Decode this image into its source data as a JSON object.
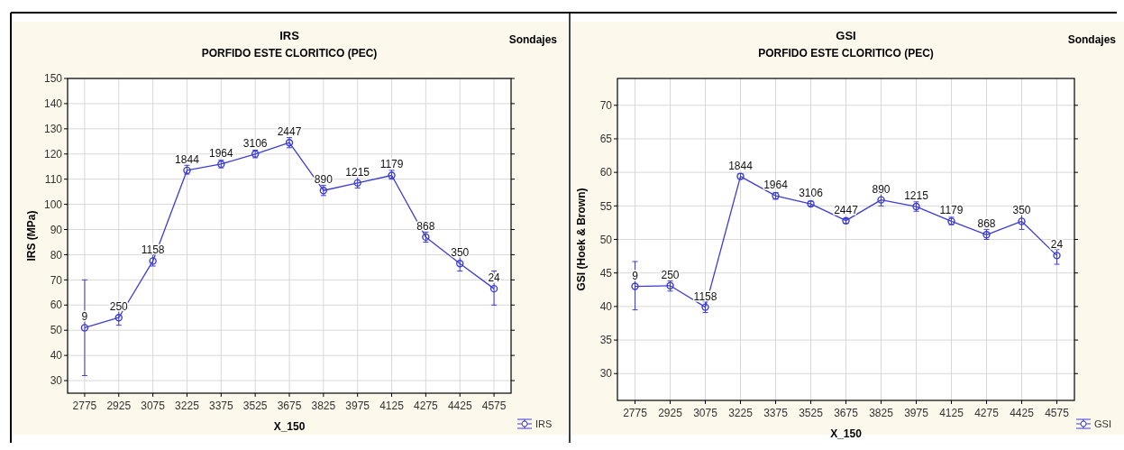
{
  "chart_data": [
    {
      "type": "line",
      "title": "IRS",
      "subtitle": "PORFIDO ESTE CLORITICO (PEC)",
      "legend_title": "Sondajes",
      "xlabel": "X_150",
      "ylabel": "IRS (MPa)",
      "categories": [
        "2775",
        "2925",
        "3075",
        "3225",
        "3375",
        "3525",
        "3675",
        "3825",
        "3975",
        "4125",
        "4275",
        "4425",
        "4575"
      ],
      "series": [
        {
          "name": "IRS",
          "color": "#3c3cd8",
          "values": [
            51,
            55,
            77.5,
            113.5,
            116,
            120,
            124.5,
            105.5,
            108.5,
            111.5,
            87,
            76.5,
            66.5
          ],
          "errors": [
            [
              32,
              70
            ],
            [
              52,
              58
            ],
            [
              75.5,
              80
            ],
            [
              112,
              115.5
            ],
            [
              114.5,
              117.5
            ],
            [
              118.5,
              121.5
            ],
            [
              122.5,
              126.5
            ],
            [
              103.5,
              107.5
            ],
            [
              106.5,
              111
            ],
            [
              110,
              113.5
            ],
            [
              85,
              89
            ],
            [
              73.5,
              80
            ],
            [
              60,
              73.5
            ]
          ]
        }
      ],
      "ylim": [
        25,
        150
      ],
      "yticks": [
        30,
        40,
        50,
        60,
        70,
        80,
        90,
        100,
        110,
        120,
        130,
        140,
        150
      ],
      "grid": true,
      "legend": "bottom right",
      "marker": "circle",
      "annotations": [
        {
          "text": "9",
          "x": "2775",
          "y": 51
        },
        {
          "text": "250",
          "x": "2925",
          "y": 55
        },
        {
          "text": "1158",
          "x": "3075",
          "y": 77.5
        },
        {
          "text": "1844",
          "x": "3225",
          "y": 113.5
        },
        {
          "text": "1964",
          "x": "3375",
          "y": 116
        },
        {
          "text": "3106",
          "x": "3525",
          "y": 120
        },
        {
          "text": "2447",
          "x": "3675",
          "y": 124.5
        },
        {
          "text": "890",
          "x": "3825",
          "y": 105.5
        },
        {
          "text": "1215",
          "x": "3975",
          "y": 108.5
        },
        {
          "text": "1179",
          "x": "4125",
          "y": 111.5
        },
        {
          "text": "868",
          "x": "4275",
          "y": 87
        },
        {
          "text": "350",
          "x": "4425",
          "y": 76.5
        },
        {
          "text": "24",
          "x": "4575",
          "y": 66.5
        }
      ]
    },
    {
      "type": "line",
      "title": "GSI",
      "subtitle": "PORFIDO ESTE CLORITICO (PEC)",
      "legend_title": "Sondajes",
      "xlabel": "X_150",
      "ylabel": "GSI (Hoek & Brown)",
      "categories": [
        "2775",
        "2925",
        "3075",
        "3225",
        "3375",
        "3525",
        "3675",
        "3825",
        "3975",
        "4125",
        "4275",
        "4425",
        "4575"
      ],
      "series": [
        {
          "name": "GSI",
          "color": "#3c3cd8",
          "values": [
            43,
            43.1,
            39.9,
            59.4,
            56.5,
            55.3,
            52.8,
            55.9,
            54.9,
            52.7,
            50.7,
            52.7,
            47.6
          ],
          "errors": [
            [
              39.5,
              46.7
            ],
            [
              42.3,
              43.8
            ],
            [
              39.1,
              40.7
            ],
            [
              59,
              59.8
            ],
            [
              56,
              57
            ],
            [
              55,
              55.7
            ],
            [
              52.4,
              53.1
            ],
            [
              55,
              56.9
            ],
            [
              54.2,
              55.6
            ],
            [
              52.2,
              53.3
            ],
            [
              50,
              51.5
            ],
            [
              51.5,
              54
            ],
            [
              46.3,
              48.5
            ]
          ]
        }
      ],
      "ylim": [
        26,
        74
      ],
      "yticks": [
        30,
        35,
        40,
        45,
        50,
        55,
        60,
        65,
        70
      ],
      "grid": true,
      "legend": "bottom right",
      "marker": "circle",
      "annotations": [
        {
          "text": "9",
          "x": "2775",
          "y": 43
        },
        {
          "text": "250",
          "x": "2925",
          "y": 43.1
        },
        {
          "text": "1158",
          "x": "3075",
          "y": 39.9
        },
        {
          "text": "1844",
          "x": "3225",
          "y": 59.4
        },
        {
          "text": "1964",
          "x": "3375",
          "y": 56.5
        },
        {
          "text": "3106",
          "x": "3525",
          "y": 55.3
        },
        {
          "text": "2447",
          "x": "3675",
          "y": 52.8
        },
        {
          "text": "890",
          "x": "3825",
          "y": 55.9
        },
        {
          "text": "1215",
          "x": "3975",
          "y": 54.9
        },
        {
          "text": "1179",
          "x": "4125",
          "y": 52.7
        },
        {
          "text": "868",
          "x": "4275",
          "y": 50.7
        },
        {
          "text": "350",
          "x": "4425",
          "y": 52.7
        },
        {
          "text": "24",
          "x": "4575",
          "y": 47.6
        }
      ]
    }
  ]
}
